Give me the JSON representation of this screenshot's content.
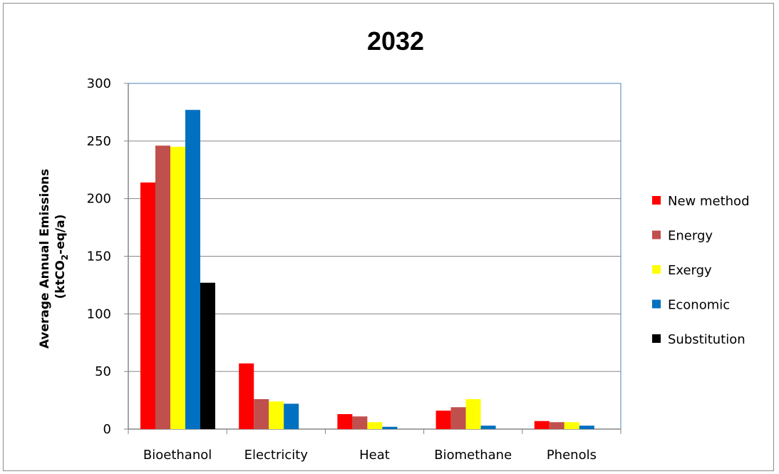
{
  "chart_data": {
    "type": "bar",
    "title": "2032",
    "ylabel_line1": "Average Annual Emissions",
    "ylabel_line2_prefix": "(ktCO",
    "ylabel_line2_sub": "2",
    "ylabel_line2_suffix": "-eq/a)",
    "xlabel": "",
    "ylim": [
      0,
      300
    ],
    "yticks": [
      0,
      50,
      100,
      150,
      200,
      250,
      300
    ],
    "grid": true,
    "legend_position": "right",
    "categories": [
      "Bioethanol",
      "Electricity",
      "Heat",
      "Biomethane",
      "Phenols"
    ],
    "series": [
      {
        "name": "New method",
        "color": "#ff0000",
        "values": [
          214,
          57,
          13,
          16,
          7
        ]
      },
      {
        "name": "Energy",
        "color": "#c0504d",
        "values": [
          246,
          26,
          11,
          19,
          6
        ]
      },
      {
        "name": "Exergy",
        "color": "#ffff00",
        "values": [
          245,
          24,
          6,
          26,
          6
        ]
      },
      {
        "name": "Economic",
        "color": "#0070c0",
        "values": [
          277,
          22,
          2,
          3,
          3
        ]
      },
      {
        "name": "Substitution",
        "color": "#000000",
        "values": [
          127,
          0,
          0,
          0,
          0
        ]
      }
    ],
    "gridline_color": "#868686",
    "axis_color": "#4f81bd"
  }
}
